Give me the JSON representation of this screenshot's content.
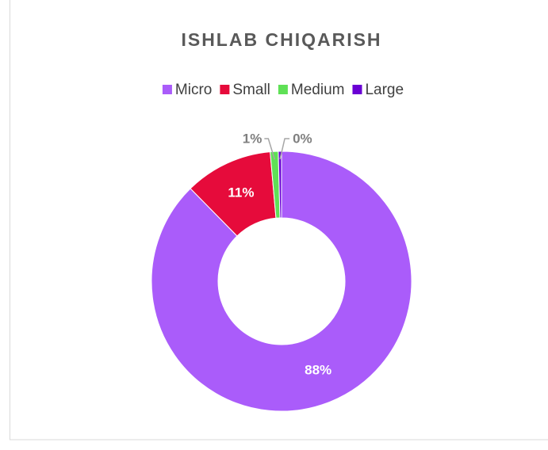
{
  "chart_data": {
    "type": "donut",
    "title": "ISHLAB CHIQARISH",
    "categories": [
      "Micro",
      "Small",
      "Medium",
      "Large"
    ],
    "values": [
      88,
      11,
      1,
      0.4
    ],
    "value_labels": [
      "88%",
      "11%",
      "1%",
      "0%"
    ],
    "colors": [
      "#aa5cfa",
      "#e60b3b",
      "#5fe056",
      "#6a00d4"
    ],
    "legend": "top"
  }
}
